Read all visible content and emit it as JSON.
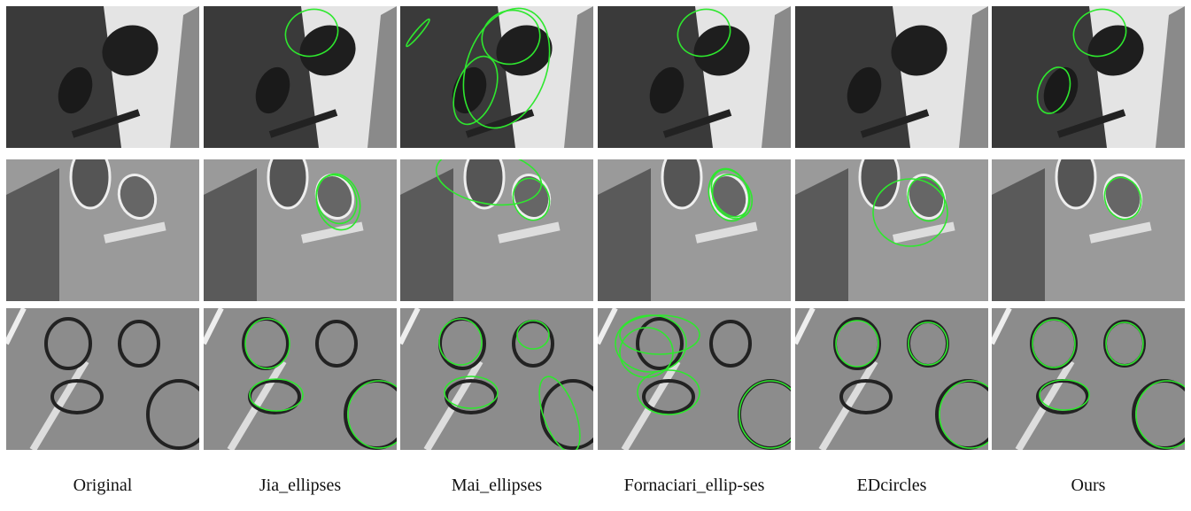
{
  "columns": [
    "Original",
    "Jia_ellipses",
    "Mai_ellipses",
    "Fornaciari_ellip-ses",
    "EDcircles",
    "Ours"
  ]
}
